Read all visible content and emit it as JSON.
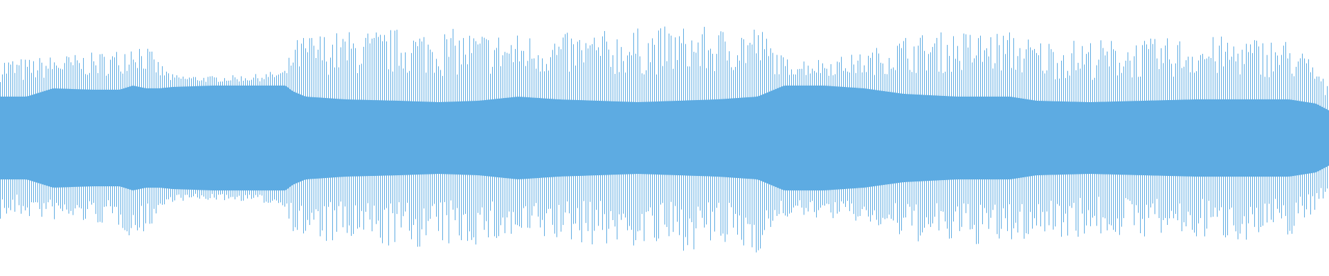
{
  "chart_data": {
    "type": "area",
    "title": "",
    "xlabel": "",
    "ylabel": "",
    "grid": false,
    "legend": "none",
    "color": "#5dabe2",
    "background": "#ffffff",
    "symmetric": true,
    "ylim": [
      -1,
      1
    ],
    "xlim": [
      0,
      1
    ],
    "envelope": {
      "x": [
        0.0,
        0.02,
        0.04,
        0.07,
        0.09,
        0.1,
        0.11,
        0.12,
        0.13,
        0.16,
        0.19,
        0.215,
        0.22,
        0.23,
        0.26,
        0.3,
        0.33,
        0.36,
        0.39,
        0.42,
        0.45,
        0.48,
        0.51,
        0.54,
        0.57,
        0.58,
        0.59,
        0.62,
        0.65,
        0.68,
        0.72,
        0.76,
        0.78,
        0.82,
        0.86,
        0.9,
        0.94,
        0.97,
        0.99,
        1.0
      ],
      "body": [
        0.3,
        0.3,
        0.36,
        0.35,
        0.35,
        0.38,
        0.36,
        0.36,
        0.37,
        0.38,
        0.38,
        0.38,
        0.34,
        0.3,
        0.28,
        0.27,
        0.26,
        0.27,
        0.3,
        0.28,
        0.27,
        0.26,
        0.27,
        0.28,
        0.3,
        0.34,
        0.38,
        0.38,
        0.36,
        0.32,
        0.3,
        0.3,
        0.27,
        0.26,
        0.27,
        0.28,
        0.28,
        0.28,
        0.25,
        0.2
      ],
      "peak": [
        0.6,
        0.58,
        0.6,
        0.62,
        0.65,
        0.74,
        0.68,
        0.55,
        0.46,
        0.45,
        0.46,
        0.5,
        0.7,
        0.76,
        0.78,
        0.8,
        0.8,
        0.78,
        0.76,
        0.76,
        0.78,
        0.8,
        0.82,
        0.8,
        0.84,
        0.7,
        0.58,
        0.58,
        0.62,
        0.75,
        0.78,
        0.78,
        0.72,
        0.72,
        0.72,
        0.74,
        0.74,
        0.72,
        0.55,
        0.35
      ]
    }
  }
}
